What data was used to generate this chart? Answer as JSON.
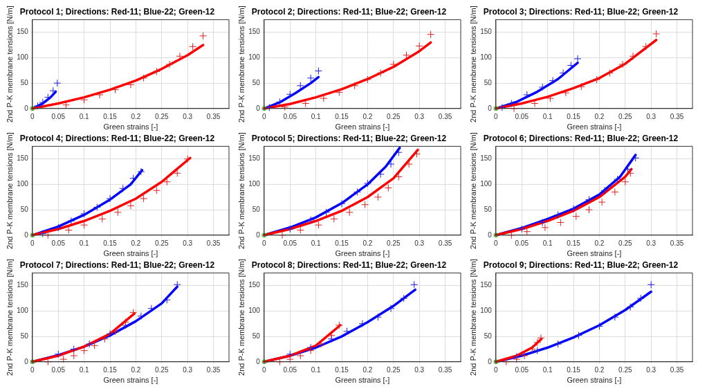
{
  "chart_data": [
    {
      "type": "scatter",
      "title": "Protocol 1; Directions: Red-11; Blue-22; Green-12",
      "xlabel": "Green strains [-]",
      "ylabel": "2nd P-K membrane tensions [N/m]",
      "xlim": [
        0,
        0.38
      ],
      "ylim": [
        0,
        175
      ],
      "xticks": [
        0,
        0.05,
        0.1,
        0.15,
        0.2,
        0.25,
        0.3,
        0.35
      ],
      "yticks": [
        0,
        50,
        100,
        150
      ],
      "grid": true,
      "series": [
        {
          "type": "scatter",
          "marker": "cross",
          "color": "#e02020",
          "x": [
            0.065,
            0.1,
            0.13,
            0.16,
            0.19,
            0.215,
            0.24,
            0.265,
            0.285,
            0.31,
            0.33
          ],
          "values": [
            7,
            17,
            27,
            37,
            47,
            60,
            73,
            87,
            103,
            122,
            143
          ]
        },
        {
          "type": "line",
          "marker": "none",
          "color": "#ff0000",
          "x": [
            0,
            0.05,
            0.1,
            0.15,
            0.2,
            0.25,
            0.3,
            0.33
          ],
          "values": [
            0,
            10,
            22,
            37,
            55,
            78,
            105,
            125
          ]
        },
        {
          "type": "scatter",
          "marker": "cross",
          "color": "#2020e0",
          "x": [
            0.01,
            0.02,
            0.03,
            0.04,
            0.048
          ],
          "values": [
            5,
            12,
            22,
            35,
            50
          ]
        },
        {
          "type": "line",
          "marker": "none",
          "color": "#0000ff",
          "x": [
            0,
            0.02,
            0.035,
            0.045
          ],
          "values": [
            0,
            10,
            22,
            33
          ]
        },
        {
          "type": "scatter",
          "marker": "circle",
          "color": "#00cc00",
          "x": [
            0
          ],
          "values": [
            0
          ]
        }
      ]
    },
    {
      "type": "scatter",
      "title": "Protocol 2; Directions: Red-11; Blue-22; Green-12",
      "xlabel": "Green strains [-]",
      "ylabel": "2nd P-K membrane tensions [N/m]",
      "xlim": [
        0,
        0.38
      ],
      "ylim": [
        0,
        175
      ],
      "xticks": [
        0,
        0.05,
        0.1,
        0.15,
        0.2,
        0.25,
        0.3,
        0.35
      ],
      "yticks": [
        0,
        50,
        100,
        150
      ],
      "grid": true,
      "series": [
        {
          "type": "scatter",
          "marker": "cross",
          "color": "#e02020",
          "x": [
            0.04,
            0.08,
            0.115,
            0.145,
            0.175,
            0.2,
            0.225,
            0.25,
            0.275,
            0.3,
            0.322
          ],
          "values": [
            3,
            10,
            20,
            32,
            45,
            57,
            70,
            87,
            105,
            123,
            146
          ]
        },
        {
          "type": "line",
          "marker": "none",
          "color": "#ff0000",
          "x": [
            0,
            0.05,
            0.1,
            0.15,
            0.2,
            0.25,
            0.3,
            0.322
          ],
          "values": [
            0,
            9,
            22,
            38,
            58,
            82,
            113,
            130
          ]
        },
        {
          "type": "scatter",
          "marker": "cross",
          "color": "#2020e0",
          "x": [
            0.01,
            0.03,
            0.05,
            0.07,
            0.09,
            0.105
          ],
          "values": [
            2,
            13,
            28,
            45,
            60,
            74
          ]
        },
        {
          "type": "line",
          "marker": "none",
          "color": "#0000ff",
          "x": [
            0,
            0.03,
            0.06,
            0.09,
            0.105
          ],
          "values": [
            0,
            12,
            30,
            50,
            62
          ]
        },
        {
          "type": "scatter",
          "marker": "circle",
          "color": "#00cc00",
          "x": [
            0
          ],
          "values": [
            0
          ]
        }
      ]
    },
    {
      "type": "scatter",
      "title": "Protocol 3; Directions: Red-11; Blue-22; Green-12",
      "xlabel": "Green strains [-]",
      "ylabel": "2nd P-K membrane tensions [N/m]",
      "xlim": [
        0,
        0.38
      ],
      "ylim": [
        0,
        175
      ],
      "xticks": [
        0,
        0.05,
        0.1,
        0.15,
        0.2,
        0.25,
        0.3,
        0.35
      ],
      "yticks": [
        0,
        50,
        100,
        150
      ],
      "grid": true,
      "series": [
        {
          "type": "scatter",
          "marker": "cross",
          "color": "#e02020",
          "x": [
            0.035,
            0.075,
            0.105,
            0.135,
            0.165,
            0.195,
            0.22,
            0.245,
            0.265,
            0.29,
            0.31
          ],
          "values": [
            0,
            10,
            20,
            31,
            43,
            57,
            70,
            87,
            103,
            122,
            147
          ]
        },
        {
          "type": "line",
          "marker": "none",
          "color": "#ff0000",
          "x": [
            0,
            0.05,
            0.1,
            0.15,
            0.2,
            0.25,
            0.31
          ],
          "values": [
            0,
            10,
            23,
            40,
            60,
            88,
            135
          ]
        },
        {
          "type": "scatter",
          "marker": "cross",
          "color": "#2020e0",
          "x": [
            0.012,
            0.03,
            0.06,
            0.09,
            0.11,
            0.13,
            0.145,
            0.158
          ],
          "values": [
            2,
            10,
            27,
            42,
            55,
            70,
            85,
            98
          ]
        },
        {
          "type": "line",
          "marker": "none",
          "color": "#0000ff",
          "x": [
            0,
            0.04,
            0.08,
            0.12,
            0.158
          ],
          "values": [
            0,
            13,
            33,
            58,
            90
          ]
        },
        {
          "type": "scatter",
          "marker": "circle",
          "color": "#00cc00",
          "x": [
            0
          ],
          "values": [
            0
          ]
        }
      ]
    },
    {
      "type": "scatter",
      "title": "Protocol 4; Directions: Red-11; Blue-22; Green-12",
      "xlabel": "Green strains [-]",
      "ylabel": "2nd P-K membrane tensions [N/m]",
      "xlim": [
        0,
        0.38
      ],
      "ylim": [
        0,
        175
      ],
      "xticks": [
        0,
        0.05,
        0.1,
        0.15,
        0.2,
        0.25,
        0.3,
        0.35
      ],
      "yticks": [
        0,
        50,
        100,
        150
      ],
      "grid": true,
      "series": [
        {
          "type": "scatter",
          "marker": "cross",
          "color": "#e02020",
          "x": [
            0.03,
            0.07,
            0.1,
            0.135,
            0.165,
            0.19,
            0.215,
            0.24,
            0.26,
            0.28,
            0.3
          ],
          "values": [
            0,
            10,
            20,
            32,
            45,
            58,
            72,
            88,
            105,
            122,
            150
          ]
        },
        {
          "type": "line",
          "marker": "none",
          "color": "#ff0000",
          "x": [
            0,
            0.05,
            0.1,
            0.15,
            0.2,
            0.25,
            0.305
          ],
          "values": [
            0,
            12,
            28,
            48,
            72,
            105,
            152
          ]
        },
        {
          "type": "scatter",
          "marker": "cross",
          "color": "#2020e0",
          "x": [
            0.02,
            0.05,
            0.075,
            0.1,
            0.125,
            0.15,
            0.175,
            0.195,
            0.21
          ],
          "values": [
            3,
            15,
            28,
            42,
            55,
            72,
            92,
            112,
            125
          ]
        },
        {
          "type": "line",
          "marker": "none",
          "color": "#0000ff",
          "x": [
            0,
            0.05,
            0.1,
            0.15,
            0.19,
            0.212
          ],
          "values": [
            0,
            17,
            40,
            70,
            100,
            128
          ]
        },
        {
          "type": "scatter",
          "marker": "circle",
          "color": "#00cc00",
          "x": [
            0
          ],
          "values": [
            0
          ]
        }
      ]
    },
    {
      "type": "scatter",
      "title": "Protocol 5; Directions: Red-11; Blue-22; Green-12",
      "xlabel": "Green strains [-]",
      "ylabel": "2nd P-K membrane tensions [N/m]",
      "xlim": [
        0,
        0.38
      ],
      "ylim": [
        0,
        175
      ],
      "xticks": [
        0,
        0.05,
        0.1,
        0.15,
        0.2,
        0.25,
        0.3,
        0.35
      ],
      "yticks": [
        0,
        50,
        100,
        150
      ],
      "grid": true,
      "series": [
        {
          "type": "scatter",
          "marker": "cross",
          "color": "#e02020",
          "x": [
            0.035,
            0.07,
            0.105,
            0.135,
            0.165,
            0.195,
            0.22,
            0.24,
            0.26,
            0.28,
            0.295
          ],
          "values": [
            0,
            10,
            20,
            32,
            45,
            60,
            75,
            93,
            115,
            140,
            160
          ]
        },
        {
          "type": "line",
          "marker": "none",
          "color": "#ff0000",
          "x": [
            0,
            0.05,
            0.1,
            0.15,
            0.2,
            0.25,
            0.297
          ],
          "values": [
            0,
            12,
            28,
            48,
            75,
            112,
            168
          ]
        },
        {
          "type": "scatter",
          "marker": "cross",
          "color": "#2020e0",
          "x": [
            0.05,
            0.09,
            0.12,
            0.15,
            0.18,
            0.2,
            0.225,
            0.245,
            0.26
          ],
          "values": [
            12,
            30,
            45,
            62,
            85,
            102,
            120,
            140,
            163
          ]
        },
        {
          "type": "line",
          "marker": "none",
          "color": "#0000ff",
          "x": [
            0,
            0.05,
            0.1,
            0.15,
            0.2,
            0.235,
            0.262
          ],
          "values": [
            0,
            15,
            35,
            63,
            100,
            135,
            172
          ]
        },
        {
          "type": "scatter",
          "marker": "circle",
          "color": "#00cc00",
          "x": [
            0
          ],
          "values": [
            0
          ]
        }
      ]
    },
    {
      "type": "scatter",
      "title": "Protocol 6; Directions: Red-11; Blue-22; Green-12",
      "xlabel": "Green strains [-]",
      "ylabel": "2nd P-K membrane tensions [N/m]",
      "xlim": [
        0,
        0.38
      ],
      "ylim": [
        0,
        175
      ],
      "xticks": [
        0,
        0.05,
        0.1,
        0.15,
        0.2,
        0.25,
        0.3,
        0.35
      ],
      "yticks": [
        0,
        50,
        100,
        150
      ],
      "grid": true,
      "series": [
        {
          "type": "scatter",
          "marker": "cross",
          "color": "#e02020",
          "x": [
            0.03,
            0.06,
            0.095,
            0.125,
            0.155,
            0.18,
            0.205,
            0.23,
            0.25,
            0.26
          ],
          "values": [
            0,
            7,
            15,
            25,
            37,
            50,
            65,
            85,
            105,
            122
          ]
        },
        {
          "type": "line",
          "marker": "none",
          "color": "#ff0000",
          "x": [
            0,
            0.05,
            0.1,
            0.15,
            0.2,
            0.25,
            0.262
          ],
          "values": [
            0,
            12,
            28,
            48,
            75,
            115,
            130
          ]
        },
        {
          "type": "scatter",
          "marker": "cross",
          "color": "#2020e0",
          "x": [
            0.05,
            0.09,
            0.12,
            0.15,
            0.18,
            0.21,
            0.235,
            0.255,
            0.27
          ],
          "values": [
            12,
            25,
            40,
            52,
            70,
            88,
            110,
            130,
            152
          ]
        },
        {
          "type": "line",
          "marker": "none",
          "color": "#0000ff",
          "x": [
            0,
            0.05,
            0.1,
            0.15,
            0.2,
            0.24,
            0.27
          ],
          "values": [
            0,
            14,
            32,
            52,
            80,
            115,
            158
          ]
        },
        {
          "type": "scatter",
          "marker": "circle",
          "color": "#00cc00",
          "x": [
            0
          ],
          "values": [
            0
          ]
        }
      ]
    },
    {
      "type": "scatter",
      "title": "Protocol 7; Directions: Red-11; Blue-22; Green-12",
      "xlabel": "Green strains [-]",
      "ylabel": "2nd P-K membrane tensions [N/m]",
      "xlim": [
        0,
        0.38
      ],
      "ylim": [
        0,
        175
      ],
      "xticks": [
        0,
        0.05,
        0.1,
        0.15,
        0.2,
        0.25,
        0.3,
        0.35
      ],
      "yticks": [
        0,
        50,
        100,
        150
      ],
      "grid": true,
      "series": [
        {
          "type": "scatter",
          "marker": "cross",
          "color": "#e02020",
          "x": [
            0.03,
            0.06,
            0.08,
            0.1,
            0.12,
            0.14,
            0.16,
            0.18,
            0.195
          ],
          "values": [
            0,
            5,
            12,
            22,
            32,
            45,
            60,
            78,
            97
          ]
        },
        {
          "type": "line",
          "marker": "none",
          "color": "#ff0000",
          "x": [
            0,
            0.05,
            0.1,
            0.15,
            0.197
          ],
          "values": [
            0,
            12,
            30,
            55,
            95
          ]
        },
        {
          "type": "scatter",
          "marker": "cross",
          "color": "#2020e0",
          "x": [
            0.05,
            0.08,
            0.11,
            0.15,
            0.18,
            0.21,
            0.23,
            0.26,
            0.28
          ],
          "values": [
            15,
            25,
            35,
            55,
            72,
            90,
            105,
            122,
            152
          ]
        },
        {
          "type": "line",
          "marker": "none",
          "color": "#0000ff",
          "x": [
            0,
            0.05,
            0.1,
            0.15,
            0.2,
            0.25,
            0.28
          ],
          "values": [
            0,
            13,
            30,
            52,
            80,
            115,
            148
          ]
        },
        {
          "type": "scatter",
          "marker": "circle",
          "color": "#00cc00",
          "x": [
            0
          ],
          "values": [
            0
          ]
        }
      ]
    },
    {
      "type": "scatter",
      "title": "Protocol 8; Directions: Red-11; Blue-22; Green-12",
      "xlabel": "Green strains [-]",
      "ylabel": "2nd P-K membrane tensions [N/m]",
      "xlim": [
        0,
        0.38
      ],
      "ylim": [
        0,
        175
      ],
      "xticks": [
        0,
        0.05,
        0.1,
        0.15,
        0.2,
        0.25,
        0.3,
        0.35
      ],
      "yticks": [
        0,
        50,
        100,
        150
      ],
      "grid": true,
      "series": [
        {
          "type": "scatter",
          "marker": "cross",
          "color": "#e02020",
          "x": [
            0.03,
            0.05,
            0.07,
            0.09,
            0.11,
            0.13,
            0.145
          ],
          "values": [
            0,
            5,
            12,
            22,
            35,
            52,
            72
          ]
        },
        {
          "type": "line",
          "marker": "none",
          "color": "#ff0000",
          "x": [
            0,
            0.05,
            0.1,
            0.147
          ],
          "values": [
            0,
            12,
            32,
            72
          ]
        },
        {
          "type": "scatter",
          "marker": "cross",
          "color": "#2020e0",
          "x": [
            0.05,
            0.09,
            0.13,
            0.16,
            0.19,
            0.22,
            0.245,
            0.27,
            0.29
          ],
          "values": [
            15,
            28,
            45,
            60,
            75,
            88,
            105,
            125,
            152
          ]
        },
        {
          "type": "line",
          "marker": "none",
          "color": "#0000ff",
          "x": [
            0,
            0.05,
            0.1,
            0.15,
            0.2,
            0.25,
            0.292
          ],
          "values": [
            0,
            12,
            28,
            50,
            78,
            110,
            142
          ]
        },
        {
          "type": "scatter",
          "marker": "circle",
          "color": "#00cc00",
          "x": [
            0
          ],
          "values": [
            0
          ]
        }
      ]
    },
    {
      "type": "scatter",
      "title": "Protocol 9; Directions: Red-11; Blue-22; Green-12",
      "xlabel": "Green strains [-]",
      "ylabel": "2nd P-K membrane tensions [N/m]",
      "xlim": [
        0,
        0.38
      ],
      "ylim": [
        0,
        175
      ],
      "xticks": [
        0,
        0.05,
        0.1,
        0.15,
        0.2,
        0.25,
        0.3,
        0.35
      ],
      "yticks": [
        0,
        50,
        100,
        150
      ],
      "grid": true,
      "series": [
        {
          "type": "scatter",
          "marker": "cross",
          "color": "#e02020",
          "x": [
            0.02,
            0.04,
            0.055,
            0.07,
            0.08,
            0.087
          ],
          "values": [
            0,
            5,
            12,
            25,
            38,
            47
          ]
        },
        {
          "type": "line",
          "marker": "none",
          "color": "#ff0000",
          "x": [
            0,
            0.04,
            0.07,
            0.088
          ],
          "values": [
            0,
            12,
            28,
            45
          ]
        },
        {
          "type": "scatter",
          "marker": "cross",
          "color": "#2020e0",
          "x": [
            0.04,
            0.08,
            0.12,
            0.16,
            0.2,
            0.23,
            0.26,
            0.28,
            0.3
          ],
          "values": [
            10,
            22,
            35,
            52,
            70,
            88,
            108,
            125,
            152
          ]
        },
        {
          "type": "line",
          "marker": "none",
          "color": "#0000ff",
          "x": [
            0,
            0.05,
            0.1,
            0.15,
            0.2,
            0.25,
            0.3
          ],
          "values": [
            0,
            12,
            28,
            48,
            72,
            102,
            138
          ]
        },
        {
          "type": "scatter",
          "marker": "circle",
          "color": "#00cc00",
          "x": [
            0
          ],
          "values": [
            0
          ]
        }
      ]
    }
  ]
}
